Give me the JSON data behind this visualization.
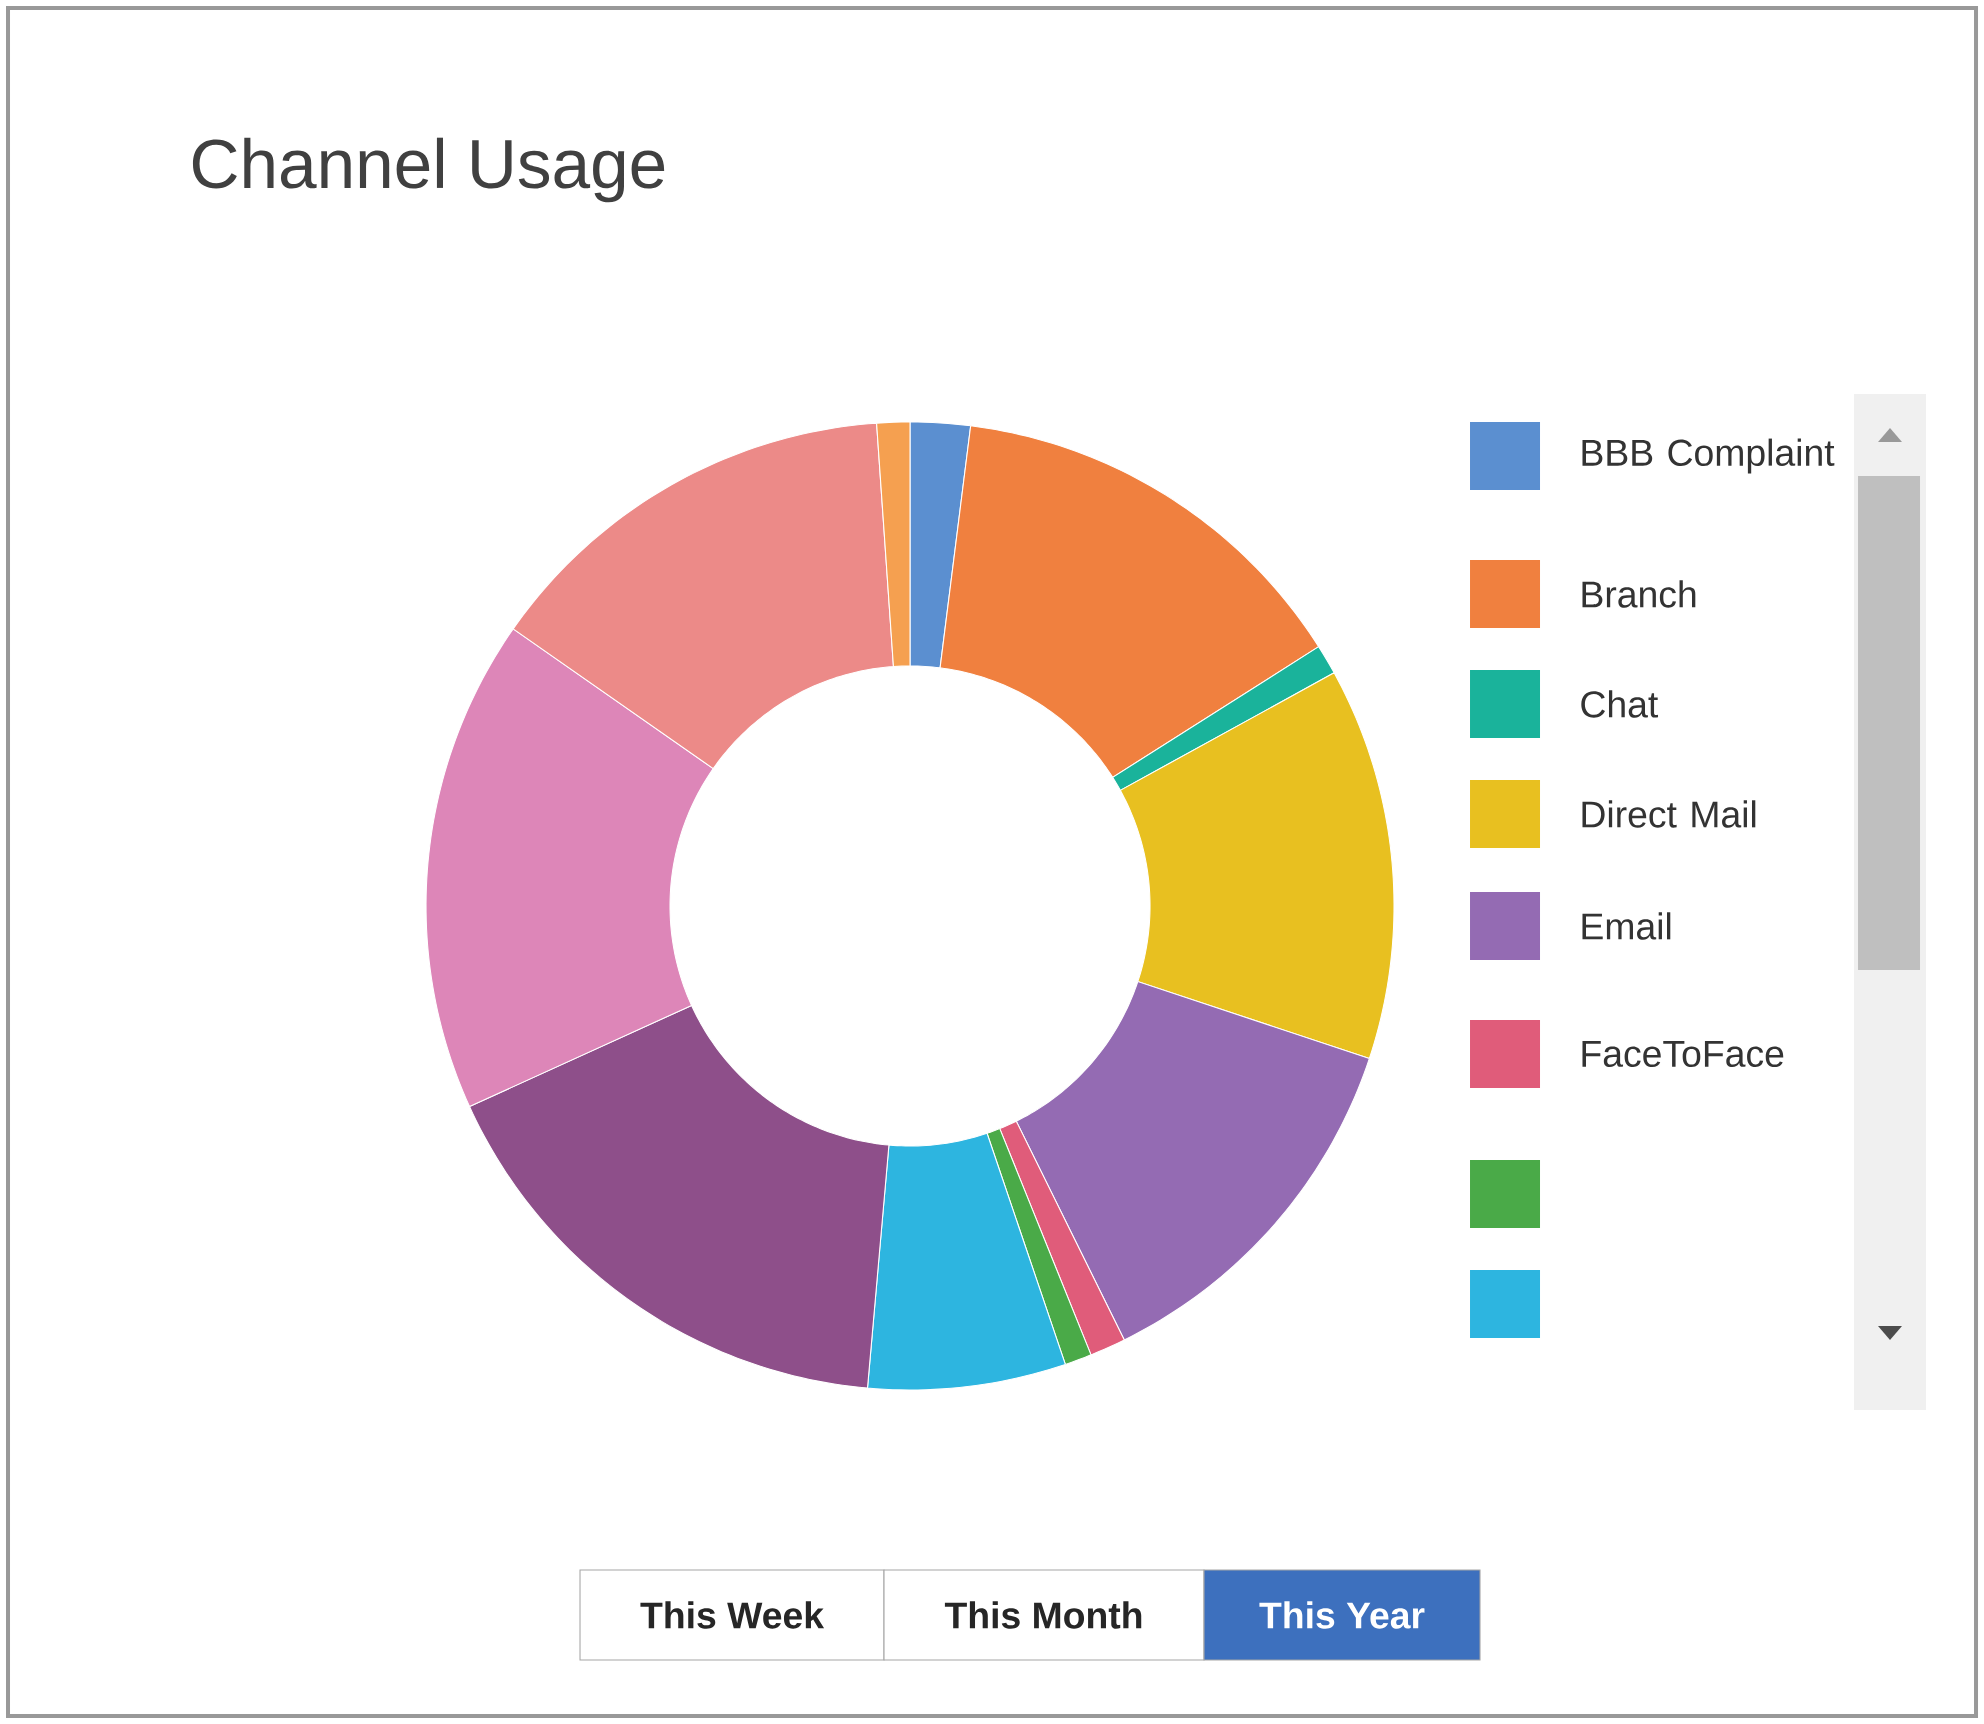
{
  "chart_data": {
    "type": "donut",
    "title": "Channel Usage",
    "categories": [
      "BBB Complaint",
      "Branch",
      "Chat",
      "Direct Mail",
      "Email",
      "FaceToFace",
      null,
      null,
      null,
      null,
      null,
      null
    ],
    "values": [
      2.0,
      14.0,
      1.0,
      13.1,
      12.6,
      1.2,
      0.9,
      6.6,
      16.8,
      16.5,
      14.2,
      1.1
    ],
    "colors": [
      "#5b8fd0",
      "#f0803f",
      "#1ab39b",
      "#e8c020",
      "#946bb3",
      "#e05c7a",
      "#4aaa48",
      "#2db5e0",
      "#8e4f8a",
      "#dd86b8",
      "#ec8a88",
      "#f5a050"
    ],
    "legend": "right",
    "annotations": [
      "This Week",
      "This Month",
      "This Year"
    ]
  }
}
